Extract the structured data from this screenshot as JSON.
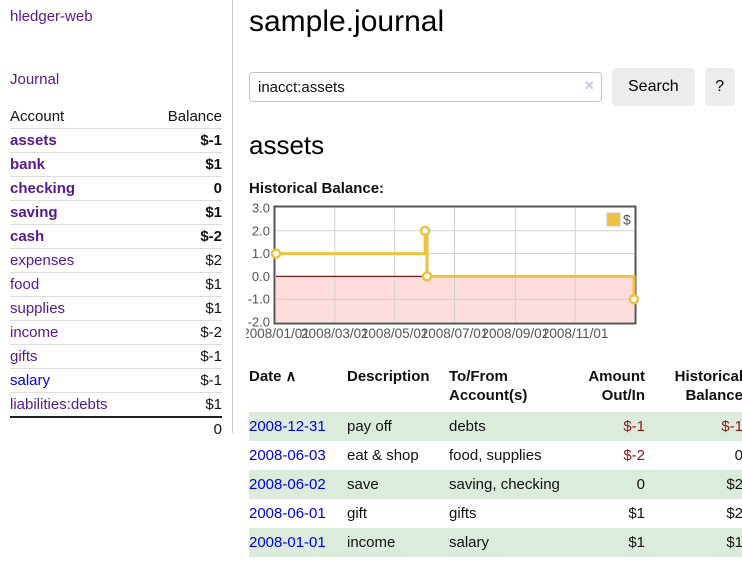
{
  "app": {
    "title": "hledger-web",
    "nav_journal": "Journal"
  },
  "sidebar": {
    "accounts_header": {
      "account": "Account",
      "balance": "Balance"
    },
    "accounts": [
      {
        "name": "assets",
        "level": 1,
        "bold": true,
        "balance": "$-1",
        "balance_style": "neg-strong"
      },
      {
        "name": "bank",
        "level": 2,
        "bold": true,
        "balance": "$1",
        "balance_style": ""
      },
      {
        "name": "checking",
        "level": 3,
        "bold": true,
        "balance": "0",
        "balance_style": ""
      },
      {
        "name": "saving",
        "level": 3,
        "bold": true,
        "balance": "$1",
        "balance_style": ""
      },
      {
        "name": "cash",
        "level": 2,
        "bold": true,
        "balance": "$-2",
        "balance_style": "neg-strong"
      },
      {
        "name": "expenses",
        "level": 1,
        "bold": false,
        "balance": "$2",
        "balance_style": ""
      },
      {
        "name": "food",
        "level": 2,
        "bold": false,
        "balance": "$1",
        "balance_style": ""
      },
      {
        "name": "supplies",
        "level": 2,
        "bold": false,
        "balance": "$1",
        "balance_style": ""
      },
      {
        "name": "income",
        "level": 1,
        "bold": false,
        "balance": "$-2",
        "balance_style": "neg-soft"
      },
      {
        "name": "gifts",
        "level": 2,
        "bold": false,
        "balance": "$-1",
        "balance_style": "neg-soft"
      },
      {
        "name": "salary",
        "level": 2,
        "bold": false,
        "balance": "$-1",
        "balance_style": "neg-soft",
        "link_color": "blue"
      },
      {
        "name": "liabilities:debts",
        "level": 1,
        "bold": false,
        "balance": "$1",
        "balance_style": ""
      }
    ],
    "total": "0"
  },
  "main": {
    "title": "sample.journal",
    "search": {
      "value": "inacct:assets",
      "clear_icon": "×",
      "button": "Search",
      "help_button": "?"
    },
    "account_title": "assets",
    "chart_label": "Historical Balance:",
    "register": {
      "columns": [
        "Date",
        "Description",
        "To/From Account(s)",
        "Amount Out/In",
        "Historical Balance"
      ],
      "sort_indicator": "∧",
      "rows": [
        {
          "date": "2008-12-31",
          "description": "pay off",
          "accounts": "debts",
          "amount": "$-1",
          "amount_negative": true,
          "balance": "$-1",
          "balance_negative": true
        },
        {
          "date": "2008-06-03",
          "description": "eat & shop",
          "accounts": "food, supplies",
          "amount": "$-2",
          "amount_negative": true,
          "balance": "0",
          "balance_negative": false
        },
        {
          "date": "2008-06-02",
          "description": "save",
          "accounts": "saving, checking",
          "amount": "0",
          "amount_negative": false,
          "balance": "$2",
          "balance_negative": false
        },
        {
          "date": "2008-06-01",
          "description": "gift",
          "accounts": "gifts",
          "amount": "$1",
          "amount_negative": false,
          "balance": "$2",
          "balance_negative": false
        },
        {
          "date": "2008-01-01",
          "description": "income",
          "accounts": "salary",
          "amount": "$1",
          "amount_negative": false,
          "balance": "$1",
          "balance_negative": false
        }
      ]
    }
  },
  "chart_data": {
    "type": "line",
    "title": "Historical Balance",
    "step": true,
    "ylim": [
      -2,
      3
    ],
    "xlim_days": [
      0,
      365
    ],
    "grid": true,
    "legend": {
      "label": "$",
      "position": "top-right"
    },
    "y_ticks": [
      3.0,
      2.0,
      1.0,
      0.0,
      -1.0,
      -2.0
    ],
    "x_ticks": [
      {
        "label": "2008/01/01",
        "day": 0
      },
      {
        "label": "2008/03/01",
        "day": 60
      },
      {
        "label": "2008/05/01",
        "day": 121
      },
      {
        "label": "2008/07/01",
        "day": 182
      },
      {
        "label": "2008/09/01",
        "day": 244
      },
      {
        "label": "2008/11/01",
        "day": 305
      }
    ],
    "series": [
      {
        "name": "$",
        "color": "#edc240",
        "points": [
          {
            "date": "2008-01-01",
            "day": 0,
            "value": 1
          },
          {
            "date": "2008-06-01",
            "day": 152,
            "value": 2
          },
          {
            "date": "2008-06-03",
            "day": 154,
            "value": 0
          },
          {
            "date": "2008-12-31",
            "day": 365,
            "value": -1
          }
        ]
      }
    ],
    "colors": {
      "negative_region_fill": "#fddcdc",
      "zero_line": "#8b1a1a",
      "grid_line": "#d0d0d0",
      "plot_border": "#545454",
      "tick_text": "#545454"
    }
  },
  "colors": {
    "link_purple": "#551A8B",
    "link_blue": "#0000dd",
    "negative_strong": "#8f1616",
    "negative_soft": "#b56a6a",
    "row_shade_green": "#dbecdd",
    "series_gold": "#edc240"
  }
}
